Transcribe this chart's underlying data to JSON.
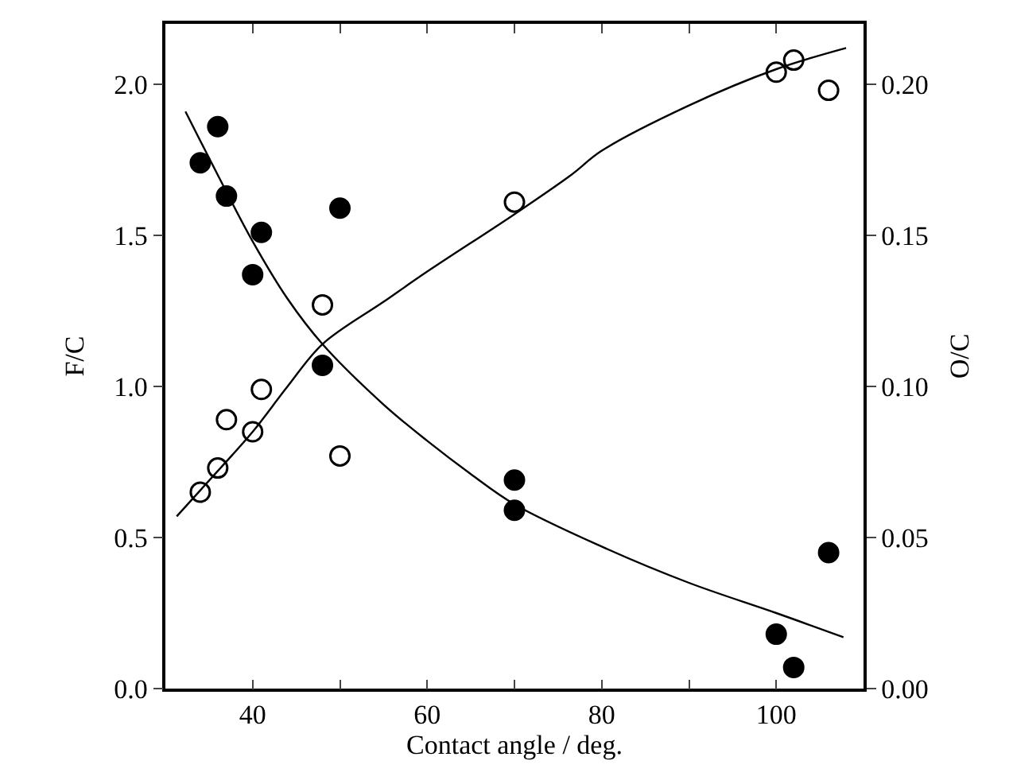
{
  "chart_data": {
    "type": "scatter",
    "xlabel": "Contact angle / deg.",
    "ylabel": "F/C",
    "y2label": "O/C",
    "xlim": [
      30,
      110
    ],
    "xticks": [
      {
        "value": 30,
        "label": null
      },
      40,
      {
        "value": 50,
        "label": null
      },
      60,
      {
        "value": 70,
        "label": null
      },
      80,
      {
        "value": 90,
        "label": null
      },
      100,
      {
        "value": 110,
        "label": null
      }
    ],
    "ylim": [
      0,
      2.2
    ],
    "yticks": [
      {
        "value": 0,
        "label": "0.0"
      },
      {
        "value": 0.5,
        "label": "0.5"
      },
      {
        "value": 1,
        "label": "1.0"
      },
      {
        "value": 1.5,
        "label": "1.5"
      },
      {
        "value": 2,
        "label": "2.0"
      }
    ],
    "y2lim": [
      0,
      0.22
    ],
    "y2ticks": [
      {
        "value": 0,
        "label": "0.00"
      },
      {
        "value": 0.05,
        "label": "0.05"
      },
      {
        "value": 0.1,
        "label": "0.10"
      },
      {
        "value": 0.15,
        "label": "0.15"
      },
      {
        "value": 0.2,
        "label": "0.20"
      }
    ],
    "marker": "circle",
    "series": [
      {
        "color": "#000000",
        "axis": "y",
        "x": [
          34,
          36,
          37,
          41,
          40,
          50,
          48,
          70,
          70,
          100,
          102,
          106
        ],
        "values": [
          1.74,
          1.86,
          1.63,
          1.51,
          1.37,
          1.59,
          1.07,
          0.69,
          0.59,
          0.18,
          0.07,
          0.45
        ]
      },
      {
        "color": "#ffffff",
        "axis": "y2",
        "x": [
          34,
          36,
          37,
          40,
          41,
          48,
          50,
          70,
          100,
          102,
          106
        ],
        "values": [
          0.065,
          0.073,
          0.089,
          0.085,
          0.099,
          0.127,
          0.077,
          0.161,
          0.204,
          0.208,
          0.198
        ]
      },
      {
        "type": "line",
        "color": "#000000",
        "axis": "y",
        "marker": "none",
        "x": [
          32.3,
          36,
          40,
          44,
          48,
          55,
          60,
          65,
          70,
          80,
          90,
          100,
          107.7
        ],
        "values": [
          1.91,
          1.7,
          1.48,
          1.29,
          1.14,
          0.94,
          0.82,
          0.71,
          0.61,
          0.47,
          0.35,
          0.25,
          0.17
        ]
      },
      {
        "type": "line",
        "color": "#000000",
        "axis": "y2",
        "marker": "none",
        "x": [
          31.3,
          36,
          40,
          44,
          48,
          55,
          60,
          70,
          76.5,
          80,
          90,
          100,
          108
        ],
        "values": [
          0.057,
          0.072,
          0.085,
          0.1,
          0.114,
          0.128,
          0.138,
          0.157,
          0.17,
          0.178,
          0.193,
          0.205,
          0.212
        ]
      }
    ]
  }
}
